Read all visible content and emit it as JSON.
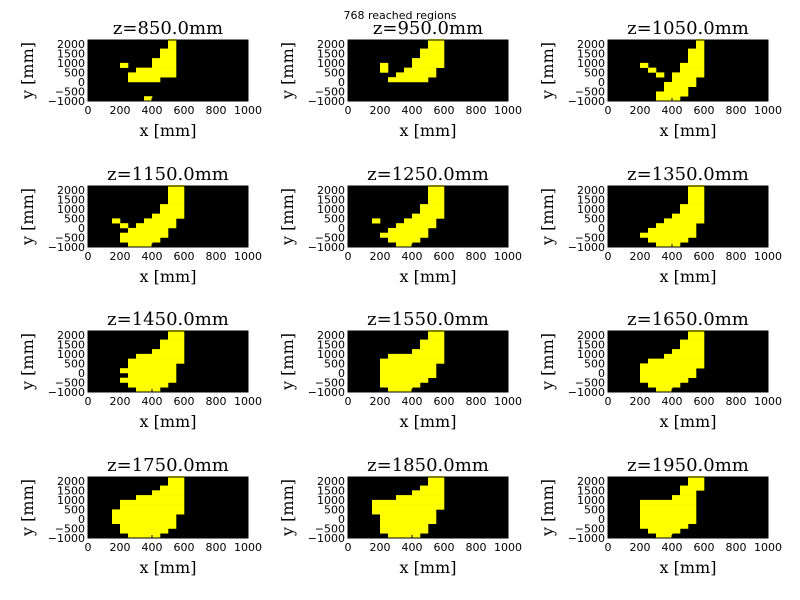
{
  "suptitle": "768 reached regions",
  "colors": {
    "background": "#000000",
    "reached": "#ffff00"
  },
  "chart_data": {
    "type": "heatmap",
    "title": "768 reached regions",
    "xlabel": "x [mm]",
    "ylabel": "y [mm]",
    "xlim": [
      0,
      1000
    ],
    "ylim": [
      -1000,
      2200
    ],
    "xticks": [
      "0",
      "200",
      "400",
      "600",
      "800",
      "1000"
    ],
    "yticks": [
      "−1000",
      "−500",
      "0",
      "500",
      "1000",
      "1500",
      "2000"
    ],
    "cell_x": [
      175,
      225,
      275,
      325,
      375,
      425,
      475,
      525,
      575
    ],
    "cell_y": [
      -875,
      -625,
      -375,
      -125,
      125,
      375,
      625,
      875,
      1125,
      1375,
      1625,
      1875,
      2125
    ],
    "cell_size_mm": 50,
    "panels": [
      {
        "title": "z=850.0mm",
        "row_ranges": [
          [
            -875,
            -875,
            null
          ],
          [
            -625,
            -625,
            null
          ],
          [
            -375,
            -375,
            null
          ],
          [
            -125,
            -125,
            null
          ],
          [
            125,
            275,
            425
          ],
          [
            375,
            275,
            525
          ],
          [
            625,
            325,
            525
          ],
          [
            875,
            425,
            525
          ],
          [
            1125,
            425,
            525
          ],
          [
            1375,
            475,
            525
          ],
          [
            1625,
            475,
            525
          ],
          [
            1875,
            525,
            525
          ],
          [
            2125,
            525,
            525
          ]
        ],
        "extra": [
          [
            -875,
            375
          ],
          [
            875,
            225
          ]
        ]
      },
      {
        "title": "z=950.0mm",
        "row_ranges": [
          [
            -875,
            -875,
            null
          ],
          [
            -625,
            -625,
            null
          ],
          [
            -375,
            -375,
            null
          ],
          [
            -125,
            -125,
            null
          ],
          [
            125,
            275,
            475
          ],
          [
            375,
            325,
            525
          ],
          [
            625,
            375,
            525
          ],
          [
            875,
            425,
            575
          ],
          [
            1125,
            425,
            575
          ],
          [
            1375,
            475,
            575
          ],
          [
            1625,
            475,
            575
          ],
          [
            1875,
            525,
            575
          ],
          [
            2125,
            525,
            575
          ]
        ],
        "extra": [
          [
            875,
            225
          ],
          [
            625,
            225
          ]
        ]
      },
      {
        "title": "z=1050.0mm",
        "row_ranges": [
          [
            -875,
            325,
            425
          ],
          [
            -625,
            325,
            475
          ],
          [
            -375,
            375,
            475
          ],
          [
            -125,
            375,
            525
          ],
          [
            125,
            425,
            525
          ],
          [
            375,
            425,
            575
          ],
          [
            625,
            475,
            575
          ],
          [
            875,
            475,
            575
          ],
          [
            1125,
            525,
            575
          ],
          [
            1375,
            525,
            575
          ],
          [
            1625,
            525,
            575
          ],
          [
            1875,
            575,
            575
          ],
          [
            2125,
            575,
            575
          ]
        ],
        "extra": [
          [
            875,
            225
          ],
          [
            625,
            275
          ],
          [
            375,
            325
          ]
        ]
      },
      {
        "title": "z=1150.0mm",
        "row_ranges": [
          [
            -875,
            275,
            375
          ],
          [
            -625,
            225,
            425
          ],
          [
            -375,
            225,
            475
          ],
          [
            -125,
            275,
            475
          ],
          [
            125,
            325,
            525
          ],
          [
            375,
            375,
            525
          ],
          [
            625,
            425,
            575
          ],
          [
            875,
            475,
            575
          ],
          [
            1125,
            475,
            575
          ],
          [
            1375,
            525,
            575
          ],
          [
            1625,
            525,
            575
          ],
          [
            1875,
            525,
            575
          ],
          [
            2125,
            525,
            575
          ]
        ],
        "extra": [
          [
            375,
            175
          ],
          [
            125,
            225
          ]
        ]
      },
      {
        "title": "z=1250.0mm",
        "row_ranges": [
          [
            -875,
            325,
            375
          ],
          [
            -625,
            275,
            425
          ],
          [
            -375,
            225,
            475
          ],
          [
            -125,
            275,
            475
          ],
          [
            125,
            325,
            525
          ],
          [
            375,
            375,
            525
          ],
          [
            625,
            425,
            575
          ],
          [
            875,
            475,
            575
          ],
          [
            1125,
            475,
            575
          ],
          [
            1375,
            525,
            575
          ],
          [
            1625,
            525,
            575
          ],
          [
            1875,
            525,
            575
          ],
          [
            2125,
            525,
            575
          ]
        ],
        "extra": [
          [
            375,
            175
          ]
        ]
      },
      {
        "title": "z=1350.0mm",
        "row_ranges": [
          [
            -875,
            325,
            425
          ],
          [
            -625,
            275,
            475
          ],
          [
            -375,
            225,
            525
          ],
          [
            -125,
            275,
            525
          ],
          [
            125,
            325,
            525
          ],
          [
            375,
            375,
            575
          ],
          [
            625,
            425,
            575
          ],
          [
            875,
            475,
            575
          ],
          [
            1125,
            475,
            575
          ],
          [
            1375,
            525,
            575
          ],
          [
            1625,
            525,
            575
          ],
          [
            1875,
            525,
            575
          ],
          [
            2125,
            525,
            575
          ]
        ],
        "extra": []
      },
      {
        "title": "z=1450.0mm",
        "row_ranges": [
          [
            -875,
            325,
            425
          ],
          [
            -625,
            275,
            475
          ],
          [
            -375,
            225,
            525
          ],
          [
            -125,
            225,
            525
          ],
          [
            125,
            225,
            525
          ],
          [
            375,
            275,
            525
          ],
          [
            625,
            275,
            575
          ],
          [
            875,
            325,
            575
          ],
          [
            1125,
            425,
            575
          ],
          [
            1375,
            475,
            575
          ],
          [
            1625,
            475,
            575
          ],
          [
            1875,
            525,
            575
          ],
          [
            2125,
            525,
            575
          ]
        ],
        "extra": [],
        "holes": [
          [
            -125,
            225
          ]
        ]
      },
      {
        "title": "z=1550.0mm",
        "row_ranges": [
          [
            -875,
            275,
            375
          ],
          [
            -625,
            225,
            425
          ],
          [
            -375,
            225,
            475
          ],
          [
            -125,
            225,
            525
          ],
          [
            125,
            225,
            525
          ],
          [
            375,
            225,
            525
          ],
          [
            625,
            225,
            575
          ],
          [
            875,
            275,
            575
          ],
          [
            1125,
            425,
            575
          ],
          [
            1375,
            475,
            575
          ],
          [
            1625,
            475,
            575
          ],
          [
            1875,
            525,
            575
          ],
          [
            2125,
            525,
            575
          ]
        ],
        "extra": []
      },
      {
        "title": "z=1650.0mm",
        "row_ranges": [
          [
            -875,
            325,
            375
          ],
          [
            -625,
            275,
            425
          ],
          [
            -375,
            225,
            475
          ],
          [
            -125,
            225,
            525
          ],
          [
            125,
            225,
            525
          ],
          [
            375,
            225,
            575
          ],
          [
            625,
            275,
            575
          ],
          [
            875,
            375,
            575
          ],
          [
            1125,
            425,
            575
          ],
          [
            1375,
            475,
            575
          ],
          [
            1625,
            475,
            575
          ],
          [
            1875,
            525,
            575
          ],
          [
            2125,
            525,
            575
          ]
        ],
        "extra": []
      },
      {
        "title": "z=1750.0mm",
        "row_ranges": [
          [
            -875,
            275,
            425
          ],
          [
            -625,
            225,
            475
          ],
          [
            -375,
            225,
            525
          ],
          [
            -125,
            175,
            525
          ],
          [
            125,
            175,
            525
          ],
          [
            375,
            175,
            575
          ],
          [
            625,
            225,
            575
          ],
          [
            875,
            225,
            575
          ],
          [
            1125,
            325,
            575
          ],
          [
            1375,
            425,
            575
          ],
          [
            1625,
            475,
            575
          ],
          [
            1875,
            525,
            575
          ],
          [
            2125,
            525,
            575
          ]
        ],
        "extra": []
      },
      {
        "title": "z=1850.0mm",
        "row_ranges": [
          [
            -875,
            275,
            425
          ],
          [
            -625,
            225,
            475
          ],
          [
            -375,
            225,
            475
          ],
          [
            -125,
            225,
            525
          ],
          [
            125,
            225,
            525
          ],
          [
            375,
            175,
            525
          ],
          [
            625,
            175,
            575
          ],
          [
            875,
            175,
            575
          ],
          [
            1125,
            325,
            575
          ],
          [
            1375,
            425,
            575
          ],
          [
            1625,
            475,
            575
          ],
          [
            1875,
            525,
            575
          ],
          [
            2125,
            525,
            575
          ]
        ],
        "extra": []
      },
      {
        "title": "z=1950.0mm",
        "row_ranges": [
          [
            -875,
            325,
            375
          ],
          [
            -625,
            275,
            425
          ],
          [
            -375,
            225,
            475
          ],
          [
            -125,
            225,
            525
          ],
          [
            125,
            225,
            525
          ],
          [
            375,
            225,
            525
          ],
          [
            625,
            225,
            525
          ],
          [
            875,
            225,
            525
          ],
          [
            1125,
            425,
            525
          ],
          [
            1375,
            475,
            525
          ],
          [
            1625,
            475,
            575
          ],
          [
            1875,
            525,
            575
          ],
          [
            2125,
            525,
            575
          ]
        ],
        "extra": []
      }
    ]
  }
}
